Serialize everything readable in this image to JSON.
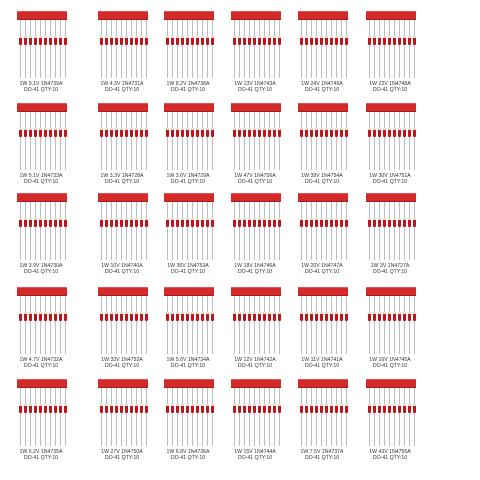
{
  "products": [
    {
      "line1": "1W 9.1V 1N4739A",
      "line2": "DO-41 QTY:10"
    },
    {
      "line1": "1W 4.3V 1N4731A",
      "line2": "DO-41 QTY:10"
    },
    {
      "line1": "1W 8.2V 1N4738A",
      "line2": "DO-41 QTY:10"
    },
    {
      "line1": "1W 13V 1N4743A",
      "line2": "DO-41 QTY:10"
    },
    {
      "line1": "1W 24V 1N4749A",
      "line2": "DO-41 QTY:10"
    },
    {
      "line1": "1W 22V 1N4748A",
      "line2": "DO-41 QTY:10"
    },
    {
      "line1": "1W 5.1V 1N4733A",
      "line2": "DO-41 QTY:10"
    },
    {
      "line1": "1W 3.3V 1N4728A",
      "line2": "DO-41 QTY:10"
    },
    {
      "line1": "1W 3.6V 1N4729A",
      "line2": "DO-41 QTY:10"
    },
    {
      "line1": "1W 47V 1N4756A",
      "line2": "DO-41 QTY:10"
    },
    {
      "line1": "1W 39V 1N4754A",
      "line2": "DO-41 QTY:10"
    },
    {
      "line1": "1W 30V 1N4751A",
      "line2": "DO-41 QTY:10"
    },
    {
      "line1": "1W 3.9V 1N4730A",
      "line2": "DO-41 QTY:10"
    },
    {
      "line1": "1W 10V 1N4740A",
      "line2": "DO-41 QTY:10"
    },
    {
      "line1": "1W 36V 1N4753A",
      "line2": "DO-41 QTY:10"
    },
    {
      "line1": "1W 18V 1N4746A",
      "line2": "DO-41 QTY:10"
    },
    {
      "line1": "1W 20V 1N4747A",
      "line2": "DO-41 QTY:10"
    },
    {
      "line1": "1W 3V 1N4727A",
      "line2": "DO-41 QTY:10"
    },
    {
      "line1": "1W 4.7V 1N4732A",
      "line2": "DO-41 QTY:10"
    },
    {
      "line1": "1W 33V 1N4752A",
      "line2": "DO-41 QTY:10"
    },
    {
      "line1": "1W 5.6V 1N4734A",
      "line2": "DO-41 QTY:10"
    },
    {
      "line1": "1W 12V 1N4742A",
      "line2": "DO-41 QTY:10"
    },
    {
      "line1": "1W 11V 1N4741A",
      "line2": "DO-41 QTY:10"
    },
    {
      "line1": "1W 16V 1N4745A",
      "line2": "DO-41 QTY:10"
    },
    {
      "line1": "1W 6.2V 1N4735A",
      "line2": "DO-41 QTY:10"
    },
    {
      "line1": "1W 27V 1N4750A",
      "line2": "DO-41 QTY:10"
    },
    {
      "line1": "1W 6.8V 1N4736A",
      "line2": "DO-41 QTY:10"
    },
    {
      "line1": "1W 15V 1N4744A",
      "line2": "DO-41 QTY:10"
    },
    {
      "line1": "1W 7.5V 1N4737A",
      "line2": "DO-41 QTY:10"
    },
    {
      "line1": "1W 43V 1N4755A",
      "line2": "DO-41 QTY:10"
    }
  ],
  "colors": {
    "tape": "#d42a2a",
    "diode_body": "#c0141c",
    "lead": "#b9bec4",
    "background": "#ffffff"
  }
}
